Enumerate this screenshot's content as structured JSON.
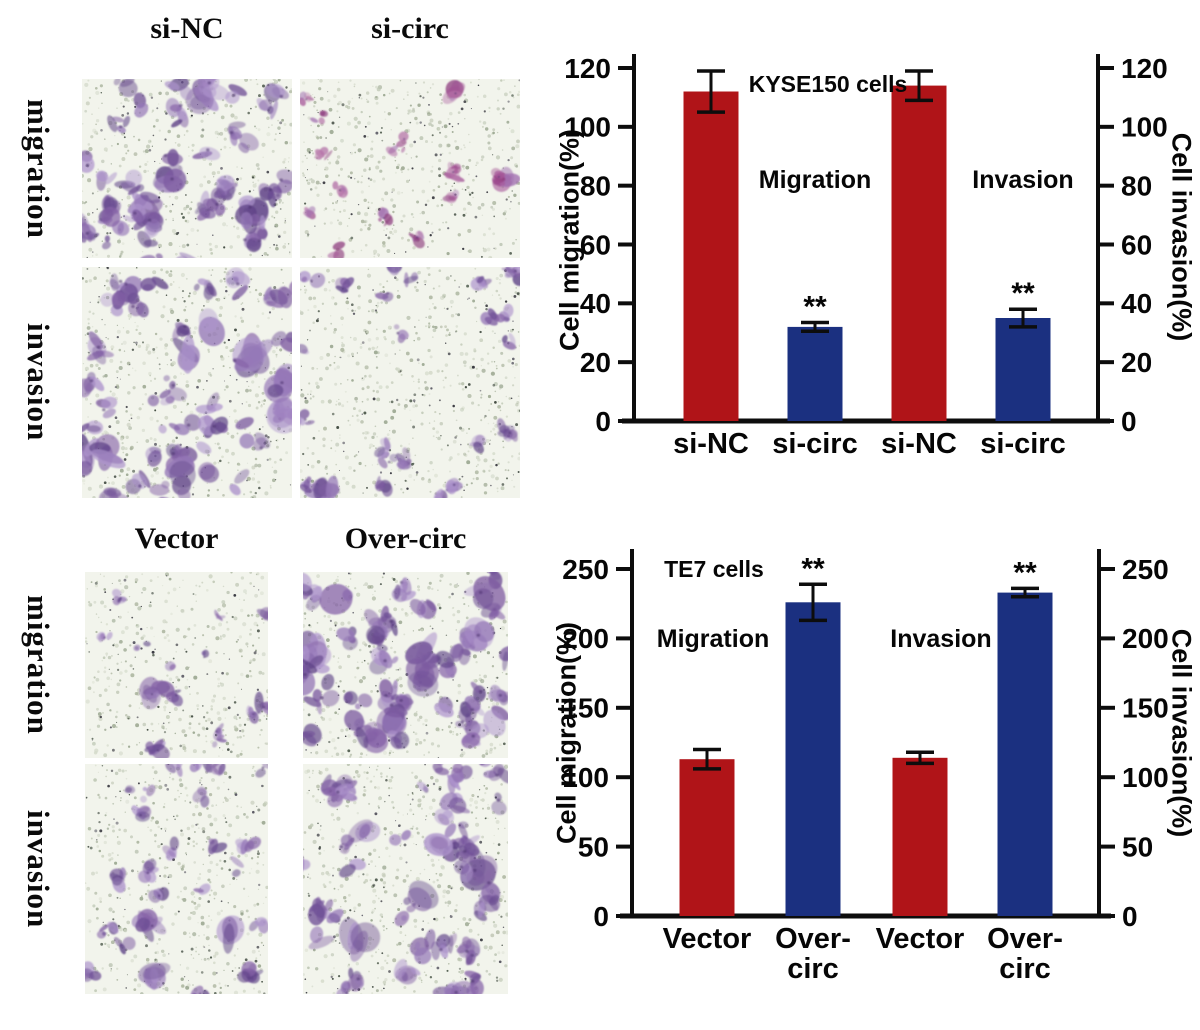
{
  "figure": {
    "panels": [
      {
        "cell_line": "KYSE150",
        "columns": [
          "si-NC",
          "si-circ"
        ],
        "rows": [
          "migration",
          "invasion"
        ]
      },
      {
        "cell_line": "TE7",
        "columns": [
          "Vector",
          "Over-circ"
        ],
        "rows": [
          "migration",
          "invasion"
        ]
      }
    ],
    "micro_cells": [
      {
        "panel": "KYSE150",
        "row": "migration",
        "col": "si-NC",
        "staining_density": "high",
        "tint": "purple"
      },
      {
        "panel": "KYSE150",
        "row": "migration",
        "col": "si-circ",
        "staining_density": "low",
        "tint": "magenta"
      },
      {
        "panel": "KYSE150",
        "row": "invasion",
        "col": "si-NC",
        "staining_density": "high",
        "tint": "purple"
      },
      {
        "panel": "KYSE150",
        "row": "invasion",
        "col": "si-circ",
        "staining_density": "medium",
        "tint": "purple"
      },
      {
        "panel": "TE7",
        "row": "migration",
        "col": "Vector",
        "staining_density": "low",
        "tint": "purple"
      },
      {
        "panel": "TE7",
        "row": "migration",
        "col": "Over-circ",
        "staining_density": "high",
        "tint": "purple"
      },
      {
        "panel": "TE7",
        "row": "invasion",
        "col": "Vector",
        "staining_density": "medium",
        "tint": "purple"
      },
      {
        "panel": "TE7",
        "row": "invasion",
        "col": "Over-circ",
        "staining_density": "high",
        "tint": "purple"
      }
    ]
  },
  "chart_data": [
    {
      "type": "bar",
      "title": "KYSE150 cells",
      "ylabel_left": "Cell migration(%)",
      "ylabel_right": "Cell invasion(%)",
      "ylim": [
        0,
        128
      ],
      "yticks": [
        0,
        20,
        40,
        60,
        80,
        100,
        120
      ],
      "grid": false,
      "legend_position": "none",
      "group_labels": [
        "Migration",
        "Invasion"
      ],
      "categories": [
        "si-NC",
        "si-circ",
        "si-NC",
        "si-circ"
      ],
      "values": [
        112,
        32,
        114,
        35
      ],
      "errors": [
        7,
        1.5,
        5,
        3
      ],
      "sig": [
        "",
        "**",
        "",
        "**"
      ],
      "bar_colors": [
        "#b01418",
        "#1b3080",
        "#b01418",
        "#1b3080"
      ]
    },
    {
      "type": "bar",
      "title": "TE7 cells",
      "ylabel_left": "Cell migration(%)",
      "ylabel_right": "Cell invasion(%)",
      "ylim": [
        0,
        265
      ],
      "yticks": [
        0,
        50,
        100,
        150,
        200,
        250
      ],
      "grid": false,
      "legend_position": "none",
      "group_labels": [
        "Migration",
        "Invasion"
      ],
      "categories": [
        "Vector",
        "Over-\ncirc",
        "Vector",
        "Over-\ncirc"
      ],
      "values": [
        113,
        226,
        114,
        233
      ],
      "errors": [
        7,
        13,
        4,
        3
      ],
      "sig": [
        "",
        "**",
        "",
        "**"
      ],
      "bar_colors": [
        "#b01418",
        "#1b3080",
        "#b01418",
        "#1b3080"
      ]
    }
  ]
}
